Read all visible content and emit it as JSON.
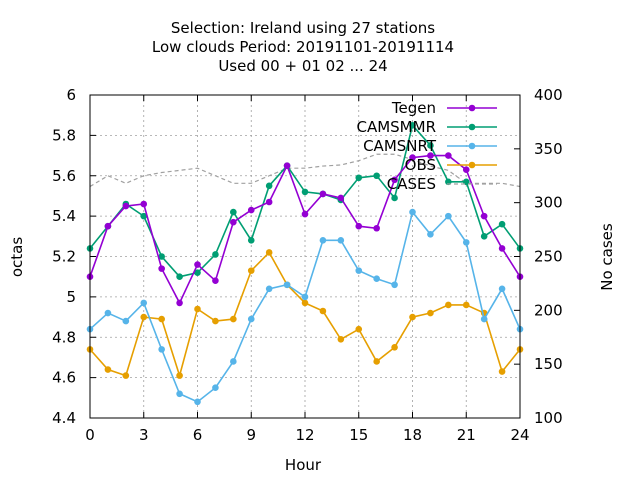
{
  "chart_data": {
    "type": "line",
    "title_lines": [
      "Selection: Ireland using    27 stations",
      "Low clouds   Period: 20191101-20191114",
      "Used  00 + 01 02 ... 24"
    ],
    "xlabel": "Hour",
    "ylabel": "octas",
    "y2label": "No cases",
    "xlim": [
      0,
      24
    ],
    "ylim": [
      4.4,
      6.0
    ],
    "y2lim": [
      100,
      400
    ],
    "xticks": [
      0,
      3,
      6,
      9,
      12,
      15,
      18,
      21,
      24
    ],
    "yticks": [
      4.4,
      4.6,
      4.8,
      5.0,
      5.2,
      5.4,
      5.6,
      5.8,
      6.0
    ],
    "ytick_labels": [
      "4.4",
      "4.6",
      "4.8",
      "5",
      "5.2",
      "5.4",
      "5.6",
      "5.8",
      "6"
    ],
    "y2ticks": [
      100,
      150,
      200,
      250,
      300,
      350,
      400
    ],
    "grid": true,
    "legend_position": "top-right",
    "x": [
      0,
      1,
      2,
      3,
      4,
      5,
      6,
      7,
      8,
      9,
      10,
      11,
      12,
      13,
      14,
      15,
      16,
      17,
      18,
      19,
      20,
      21,
      22,
      23,
      24
    ],
    "series": [
      {
        "name": "Tegen",
        "color": "#9400d3",
        "marker": "circle",
        "dashed": false,
        "values": [
          5.1,
          5.35,
          5.45,
          5.46,
          5.14,
          4.97,
          5.16,
          5.08,
          5.37,
          5.43,
          5.47,
          5.65,
          5.41,
          5.51,
          5.49,
          5.35,
          5.34,
          5.58,
          5.69,
          5.7,
          5.7,
          5.63,
          5.4,
          5.24,
          5.1
        ]
      },
      {
        "name": "CAMSMMR",
        "color": "#009e73",
        "marker": "circle",
        "dashed": false,
        "values": [
          5.24,
          5.35,
          5.46,
          5.4,
          5.2,
          5.1,
          5.12,
          5.21,
          5.42,
          5.28,
          5.55,
          5.65,
          5.52,
          5.51,
          5.48,
          5.59,
          5.6,
          5.49,
          5.85,
          5.75,
          5.57,
          5.57,
          5.3,
          5.36,
          5.24
        ]
      },
      {
        "name": "CAMSNRT",
        "color": "#56b4e9",
        "marker": "circle",
        "dashed": false,
        "values": [
          4.84,
          4.92,
          4.88,
          4.97,
          4.74,
          4.52,
          4.48,
          4.55,
          4.68,
          4.89,
          5.04,
          5.06,
          5.0,
          5.28,
          5.28,
          5.13,
          5.09,
          5.06,
          5.42,
          5.31,
          5.4,
          5.27,
          4.89,
          5.04,
          4.84
        ]
      },
      {
        "name": "OBS",
        "color": "#e69f00",
        "marker": "circle",
        "dashed": false,
        "values": [
          4.74,
          4.64,
          4.61,
          4.9,
          4.89,
          4.61,
          4.94,
          4.88,
          4.89,
          5.13,
          5.22,
          5.06,
          4.97,
          4.93,
          4.79,
          4.84,
          4.68,
          4.75,
          4.9,
          4.92,
          4.96,
          4.96,
          4.92,
          4.63,
          4.74
        ]
      },
      {
        "name": "CASES",
        "color": "#a0a0a0",
        "marker": "none",
        "dashed": true,
        "axis": "y2",
        "values": [
          315,
          325,
          318,
          325,
          328,
          330,
          332,
          325,
          318,
          318,
          325,
          332,
          332,
          334,
          335,
          339,
          345,
          345,
          340,
          334,
          330,
          318,
          318,
          318,
          315
        ]
      }
    ]
  }
}
